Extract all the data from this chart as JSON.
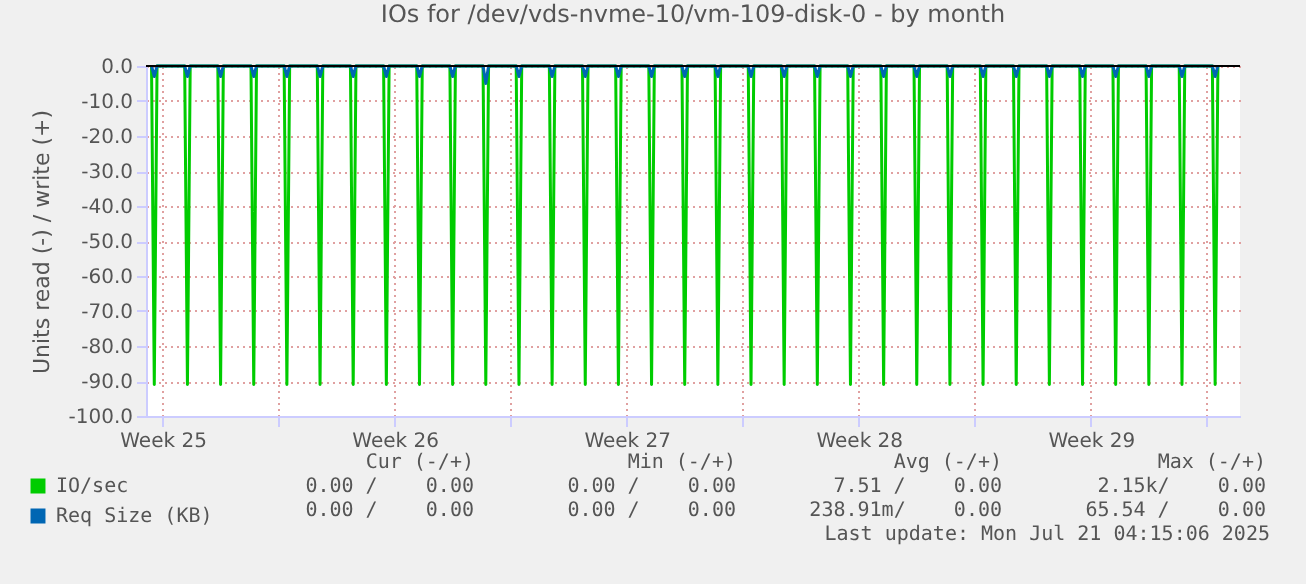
{
  "chart_data": {
    "type": "line",
    "title": "IOs for /dev/vds-nvme-10/vm-109-disk-0 - by month",
    "ylabel": "Units read (-) / write (+)",
    "x": [
      "2025-06-19T04:00",
      "2025-06-19T06:00",
      "2025-06-19T08:00",
      "2025-06-20T04:00",
      "2025-06-20T06:00",
      "2025-06-20T08:00",
      "2025-06-21T04:00",
      "2025-06-21T06:00",
      "2025-06-21T08:00",
      "2025-06-22T04:00",
      "2025-06-22T06:00",
      "2025-06-22T08:00",
      "2025-06-23T04:00",
      "2025-06-23T06:00",
      "2025-06-23T08:00",
      "2025-06-24T04:00",
      "2025-06-24T06:00",
      "2025-06-24T08:00",
      "2025-06-25T04:00",
      "2025-06-25T06:00",
      "2025-06-25T08:00",
      "2025-06-26T04:00",
      "2025-06-26T06:00",
      "2025-06-26T08:00",
      "2025-06-27T04:00",
      "2025-06-27T06:00",
      "2025-06-27T08:00",
      "2025-06-28T04:00",
      "2025-06-28T06:00",
      "2025-06-28T08:00",
      "2025-06-29T04:00",
      "2025-06-29T06:00",
      "2025-06-29T08:00",
      "2025-06-30T04:00",
      "2025-06-30T06:00",
      "2025-06-30T08:00",
      "2025-07-01T04:00",
      "2025-07-01T06:00",
      "2025-07-01T08:00",
      "2025-07-02T04:00",
      "2025-07-02T06:00",
      "2025-07-02T08:00",
      "2025-07-03T04:00",
      "2025-07-03T06:00",
      "2025-07-03T08:00",
      "2025-07-04T04:00",
      "2025-07-04T06:00",
      "2025-07-04T08:00",
      "2025-07-05T04:00",
      "2025-07-05T06:00",
      "2025-07-05T08:00",
      "2025-07-06T04:00",
      "2025-07-06T06:00",
      "2025-07-06T08:00",
      "2025-07-07T04:00",
      "2025-07-07T06:00",
      "2025-07-07T08:00",
      "2025-07-08T04:00",
      "2025-07-08T06:00",
      "2025-07-08T08:00",
      "2025-07-09T04:00",
      "2025-07-09T06:00",
      "2025-07-09T08:00",
      "2025-07-10T04:00",
      "2025-07-10T06:00",
      "2025-07-10T08:00",
      "2025-07-11T04:00",
      "2025-07-11T06:00",
      "2025-07-11T08:00",
      "2025-07-12T04:00",
      "2025-07-12T06:00",
      "2025-07-12T08:00",
      "2025-07-13T04:00",
      "2025-07-13T06:00",
      "2025-07-13T08:00",
      "2025-07-14T04:00",
      "2025-07-14T06:00",
      "2025-07-14T08:00",
      "2025-07-15T04:00",
      "2025-07-15T06:00",
      "2025-07-15T08:00",
      "2025-07-16T04:00",
      "2025-07-16T06:00",
      "2025-07-16T08:00",
      "2025-07-17T04:00",
      "2025-07-17T06:00",
      "2025-07-17T08:00",
      "2025-07-18T04:00",
      "2025-07-18T06:00",
      "2025-07-18T08:00",
      "2025-07-19T04:00",
      "2025-07-19T06:00",
      "2025-07-19T08:00",
      "2025-07-20T04:00",
      "2025-07-20T06:00",
      "2025-07-20T08:00",
      "2025-07-21T04:00",
      "2025-07-21T06:00",
      "2025-07-21T08:00"
    ],
    "series": [
      {
        "name": "IO/sec",
        "color": "#00cc00",
        "values": [
          0,
          -91,
          0,
          0,
          -91,
          0,
          0,
          -91,
          0,
          0,
          -91,
          0,
          0,
          -91,
          0,
          0,
          -91,
          0,
          0,
          -91,
          0,
          0,
          -91,
          0,
          0,
          -91,
          0,
          0,
          -91,
          0,
          0,
          -91,
          0,
          0,
          -91,
          0,
          0,
          -91,
          0,
          0,
          -91,
          0,
          0,
          -91,
          0,
          0,
          -91,
          0,
          0,
          -91,
          0,
          0,
          -91,
          0,
          0,
          -91,
          0,
          0,
          -91,
          0,
          0,
          -91,
          0,
          0,
          -91,
          0,
          0,
          -91,
          0,
          0,
          -91,
          0,
          0,
          -91,
          0,
          0,
          -91,
          0,
          0,
          -91,
          0,
          0,
          -91,
          0,
          0,
          -91,
          0,
          0,
          -91,
          0,
          0,
          -91,
          0,
          0,
          -91,
          0,
          0,
          -91,
          0
        ]
      },
      {
        "name": "Req Size (KB)",
        "color": "#0066b3",
        "values": [
          0,
          -3,
          0,
          0,
          -3,
          0,
          0,
          -3,
          0,
          0,
          -3,
          0,
          0,
          -3,
          0,
          0,
          -3,
          0,
          0,
          -3,
          0,
          0,
          -3,
          0,
          0,
          -3,
          0,
          0,
          -3,
          0,
          0,
          -5,
          0,
          0,
          -3,
          0,
          0,
          -3,
          0,
          0,
          -3,
          0,
          0,
          -3,
          0,
          0,
          -3,
          0,
          0,
          -3,
          0,
          0,
          -3,
          0,
          0,
          -3,
          0,
          0,
          -3,
          0,
          0,
          -3,
          0,
          0,
          -3,
          0,
          0,
          -3,
          0,
          0,
          -3,
          0,
          0,
          -3,
          0,
          0,
          -3,
          0,
          0,
          -3,
          0,
          0,
          -3,
          0,
          0,
          -3,
          0,
          0,
          -3,
          0,
          0,
          -3,
          0,
          0,
          -3,
          0,
          0,
          -3,
          0
        ]
      }
    ],
    "xlim": [
      "2025-06-19",
      "2025-07-22"
    ],
    "xticks": [
      {
        "value": "2025-06-19T12:00",
        "label": "Week 25"
      },
      {
        "value": "2025-06-23",
        "label": null
      },
      {
        "value": "2025-06-26T12:00",
        "label": "Week 26"
      },
      {
        "value": "2025-06-30",
        "label": null
      },
      {
        "value": "2025-07-03T12:00",
        "label": "Week 27"
      },
      {
        "value": "2025-07-07",
        "label": null
      },
      {
        "value": "2025-07-10T12:00",
        "label": "Week 28"
      },
      {
        "value": "2025-07-14",
        "label": null
      },
      {
        "value": "2025-07-17T12:00",
        "label": "Week 29"
      },
      {
        "value": "2025-07-21",
        "label": null
      }
    ],
    "ylim": [
      -100,
      0
    ],
    "yticks": [
      {
        "value": -100,
        "label": "-100.0"
      },
      {
        "value": -90,
        "label": "-90.0"
      },
      {
        "value": -80,
        "label": "-80.0"
      },
      {
        "value": -70,
        "label": "-70.0"
      },
      {
        "value": -60,
        "label": "-60.0"
      },
      {
        "value": -50,
        "label": "-50.0"
      },
      {
        "value": -40,
        "label": "-40.0"
      },
      {
        "value": -30,
        "label": "-30.0"
      },
      {
        "value": -20,
        "label": "-20.0"
      },
      {
        "value": -10,
        "label": "-10.0"
      },
      {
        "value": 0,
        "label": "0.0"
      }
    ],
    "ref_lines": [
      {
        "axis": "y",
        "value": 0,
        "color": "#000000"
      }
    ],
    "grid": true,
    "legend": "bottom left",
    "marker": "none",
    "line_style": "solid",
    "annotations": [
      "Cur (-/+)",
      "Min (-/+)",
      "Avg (-/+)",
      "Max (-/+)",
      "0.00 /    0.00",
      "0.00 /    0.00",
      "7.51 /    0.00",
      "2.15k/    0.00",
      "0.00 /    0.00",
      "0.00 /    0.00",
      "238.91m/    0.00",
      "65.54 /    0.00",
      "Last update: Mon Jul 21 04:15:06 2025"
    ]
  }
}
